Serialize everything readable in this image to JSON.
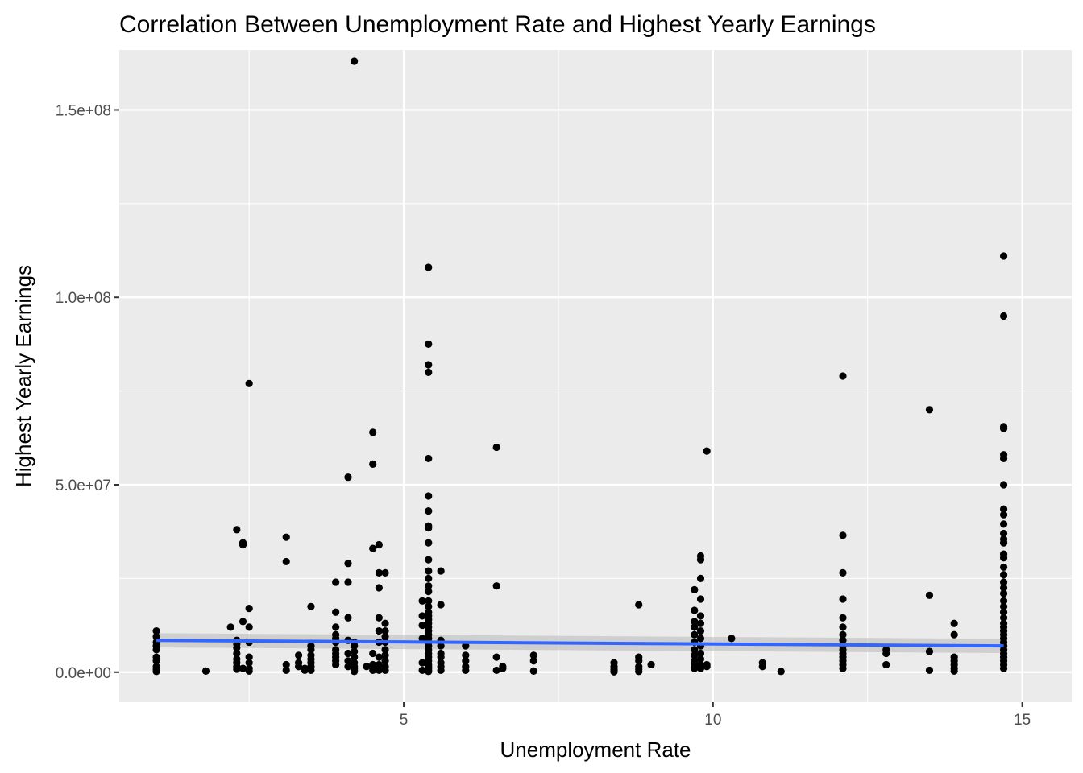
{
  "chart_data": {
    "type": "scatter",
    "title": "Correlation Between Unemployment Rate and Highest Yearly Earnings",
    "xlabel": "Unemployment Rate",
    "ylabel": "Highest Yearly Earnings",
    "xlim": [
      0.4,
      15.8
    ],
    "ylim": [
      -8000000,
      166000000
    ],
    "x_ticks": [
      5,
      10,
      15
    ],
    "x_tick_labels": [
      "5",
      "10",
      "15"
    ],
    "y_ticks": [
      0,
      50000000,
      100000000,
      150000000
    ],
    "y_tick_labels": [
      "0.0e+00",
      "5.0e+07",
      "1.0e+08",
      "1.5e+08"
    ],
    "grid": true,
    "point_color": "#000000",
    "trend_color": "#3366FF",
    "band_color": "#bdbdbd",
    "panel_color": "#ebebeb",
    "trend_line": {
      "x": [
        1.0,
        14.7
      ],
      "y": [
        8500000,
        7000000
      ]
    },
    "series": [
      {
        "x": [
          1.0,
          1.0,
          1.0,
          1.0,
          1.0,
          1.0,
          1.0,
          1.0,
          1.0,
          1.0,
          1.8,
          2.2,
          2.3,
          2.3,
          2.3,
          2.3,
          2.3,
          2.3,
          2.3,
          2.3,
          2.3,
          2.4,
          2.4,
          2.4,
          2.4,
          2.5,
          2.5,
          2.5,
          2.5,
          2.5,
          2.5,
          2.5,
          2.5,
          3.1,
          3.1,
          3.1,
          3.1,
          3.3,
          3.3,
          3.3,
          3.4,
          3.4,
          3.5,
          3.5,
          3.5,
          3.5,
          3.5,
          3.5,
          3.5,
          3.5,
          3.9,
          3.9,
          3.9,
          3.9,
          3.9,
          3.9,
          3.9,
          3.9,
          3.9,
          3.9,
          3.9,
          4.1,
          4.1,
          4.1,
          4.1,
          4.1,
          4.1,
          4.1,
          4.1,
          4.2,
          4.2,
          4.2,
          4.2,
          4.2,
          4.2,
          4.2,
          4.2,
          4.2,
          4.2,
          4.4,
          4.5,
          4.5,
          4.5,
          4.5,
          4.5,
          4.5,
          4.6,
          4.6,
          4.6,
          4.6,
          4.6,
          4.6,
          4.6,
          4.6,
          4.6,
          4.7,
          4.7,
          4.7,
          4.7,
          4.7,
          4.7,
          4.7,
          4.7,
          4.7,
          4.7,
          5.3,
          5.3,
          5.3,
          5.3,
          5.3,
          5.3,
          5.4,
          5.4,
          5.4,
          5.4,
          5.4,
          5.4,
          5.4,
          5.4,
          5.4,
          5.4,
          5.4,
          5.4,
          5.4,
          5.4,
          5.4,
          5.4,
          5.4,
          5.4,
          5.4,
          5.4,
          5.4,
          5.4,
          5.4,
          5.4,
          5.4,
          5.4,
          5.4,
          5.4,
          5.4,
          5.4,
          5.4,
          5.4,
          5.4,
          5.4,
          5.4,
          5.4,
          5.6,
          5.6,
          5.6,
          5.6,
          5.6,
          5.6,
          5.6,
          5.6,
          5.6,
          6.0,
          6.0,
          6.0,
          6.0,
          6.0,
          6.5,
          6.5,
          6.5,
          6.5,
          6.6,
          6.6,
          7.1,
          7.1,
          7.1,
          8.4,
          8.4,
          8.4,
          8.4,
          8.4,
          8.8,
          8.8,
          8.8,
          8.8,
          8.8,
          8.8,
          9.0,
          9.7,
          9.7,
          9.7,
          9.7,
          9.7,
          9.7,
          9.7,
          9.7,
          9.7,
          9.7,
          9.7,
          9.8,
          9.8,
          9.8,
          9.8,
          9.8,
          9.8,
          9.8,
          9.8,
          9.8,
          9.8,
          9.8,
          9.8,
          9.8,
          9.9,
          9.9,
          9.9,
          10.3,
          10.8,
          10.8,
          11.1,
          12.1,
          12.1,
          12.1,
          12.1,
          12.1,
          12.1,
          12.1,
          12.1,
          12.1,
          12.1,
          12.1,
          12.1,
          12.1,
          12.1,
          12.1,
          12.8,
          12.8,
          12.8,
          13.5,
          13.5,
          13.5,
          13.5,
          13.9,
          13.9,
          13.9,
          13.9,
          13.9,
          13.9,
          13.9,
          14.7,
          14.7,
          14.7,
          14.7,
          14.7,
          14.7,
          14.7,
          14.7,
          14.7,
          14.7,
          14.7,
          14.7,
          14.7,
          14.7,
          14.7,
          14.7,
          14.7,
          14.7,
          14.7,
          14.7,
          14.7,
          14.7,
          14.7,
          14.7,
          14.7,
          14.7,
          14.7,
          14.7,
          14.7,
          14.7,
          14.7,
          14.7,
          14.7,
          14.7,
          14.7,
          14.7,
          14.7
        ],
        "y": [
          11000000,
          9500000,
          8000000,
          7000000,
          6000000,
          4000000,
          3000000,
          1500000,
          800000,
          200000,
          300000,
          12000000,
          38000000,
          8500000,
          7500000,
          6500000,
          5000000,
          3500000,
          2500000,
          1500000,
          800000,
          34500000,
          34000000,
          13500000,
          1000000,
          77000000,
          17000000,
          12000000,
          8000000,
          4000000,
          2500000,
          1000000,
          300000,
          36000000,
          29500000,
          2000000,
          500000,
          4500000,
          2500000,
          1500000,
          1000000,
          500000,
          17500000,
          7000000,
          6000000,
          4500000,
          3500000,
          2500000,
          1500000,
          500000,
          24000000,
          16000000,
          12000000,
          10000000,
          9000000,
          8000000,
          6000000,
          5000000,
          4000000,
          3000000,
          2000000,
          52000000,
          29000000,
          24000000,
          14500000,
          8500000,
          5000000,
          3000000,
          1500000,
          163000000,
          8000000,
          7000000,
          5500000,
          4000000,
          2500000,
          1500000,
          1000000,
          500000,
          200000,
          1500000,
          64000000,
          55500000,
          33000000,
          5000000,
          2000000,
          500000,
          34000000,
          26500000,
          22500000,
          14500000,
          11000000,
          8000000,
          4000000,
          2000000,
          500000,
          26500000,
          13000000,
          11000000,
          9500000,
          8000000,
          6000000,
          4500000,
          3000000,
          1500000,
          500000,
          19000000,
          15000000,
          12500000,
          9000000,
          2500000,
          500000,
          108000000,
          87500000,
          82000000,
          80000000,
          57000000,
          47000000,
          43000000,
          39000000,
          38500000,
          34500000,
          30000000,
          27000000,
          25000000,
          23000000,
          21500000,
          19000000,
          17500000,
          16000000,
          15000000,
          14000000,
          13000000,
          12000000,
          11000000,
          10000000,
          9000000,
          8000000,
          7000000,
          6000000,
          5000000,
          4000000,
          3000000,
          2000000,
          1500000,
          1000000,
          500000,
          200000,
          27000000,
          18000000,
          8500000,
          7000000,
          5000000,
          4000000,
          2500000,
          1500000,
          500000,
          7000000,
          4500000,
          3000000,
          1500000,
          500000,
          60000000,
          23000000,
          4000000,
          500000,
          1500000,
          1000000,
          4500000,
          3000000,
          300000,
          2500000,
          1500000,
          800000,
          400000,
          100000,
          18000000,
          4000000,
          3000000,
          1500000,
          800000,
          200000,
          2000000,
          22000000,
          16500000,
          13500000,
          12000000,
          10000000,
          8000000,
          6000000,
          4500000,
          3000000,
          2000000,
          1000000,
          31000000,
          30000000,
          25000000,
          19500000,
          15000000,
          13000000,
          11000000,
          9000000,
          7000000,
          5000000,
          3500000,
          2000000,
          1000000,
          59000000,
          2000000,
          1500000,
          9000000,
          2500000,
          1500000,
          200000,
          79000000,
          36500000,
          26500000,
          19500000,
          14500000,
          12000000,
          10000000,
          8500000,
          7000000,
          6000000,
          5000000,
          4000000,
          3000000,
          2000000,
          1000000,
          6000000,
          5000000,
          2000000,
          70000000,
          20500000,
          5500000,
          500000,
          13000000,
          10000000,
          4000000,
          3000000,
          2000000,
          1000000,
          300000,
          111000000,
          95000000,
          65500000,
          65000000,
          58000000,
          57000000,
          50000000,
          43500000,
          42000000,
          39500000,
          37000000,
          35500000,
          34500000,
          31500000,
          30500000,
          28000000,
          26000000,
          24000000,
          22500000,
          21000000,
          19000000,
          17500000,
          16000000,
          14500000,
          13000000,
          12000000,
          11000000,
          10000000,
          9000000,
          8000000,
          7000000,
          6000000,
          5000000,
          4000000,
          3000000,
          2000000,
          1000000
        ]
      }
    ]
  }
}
